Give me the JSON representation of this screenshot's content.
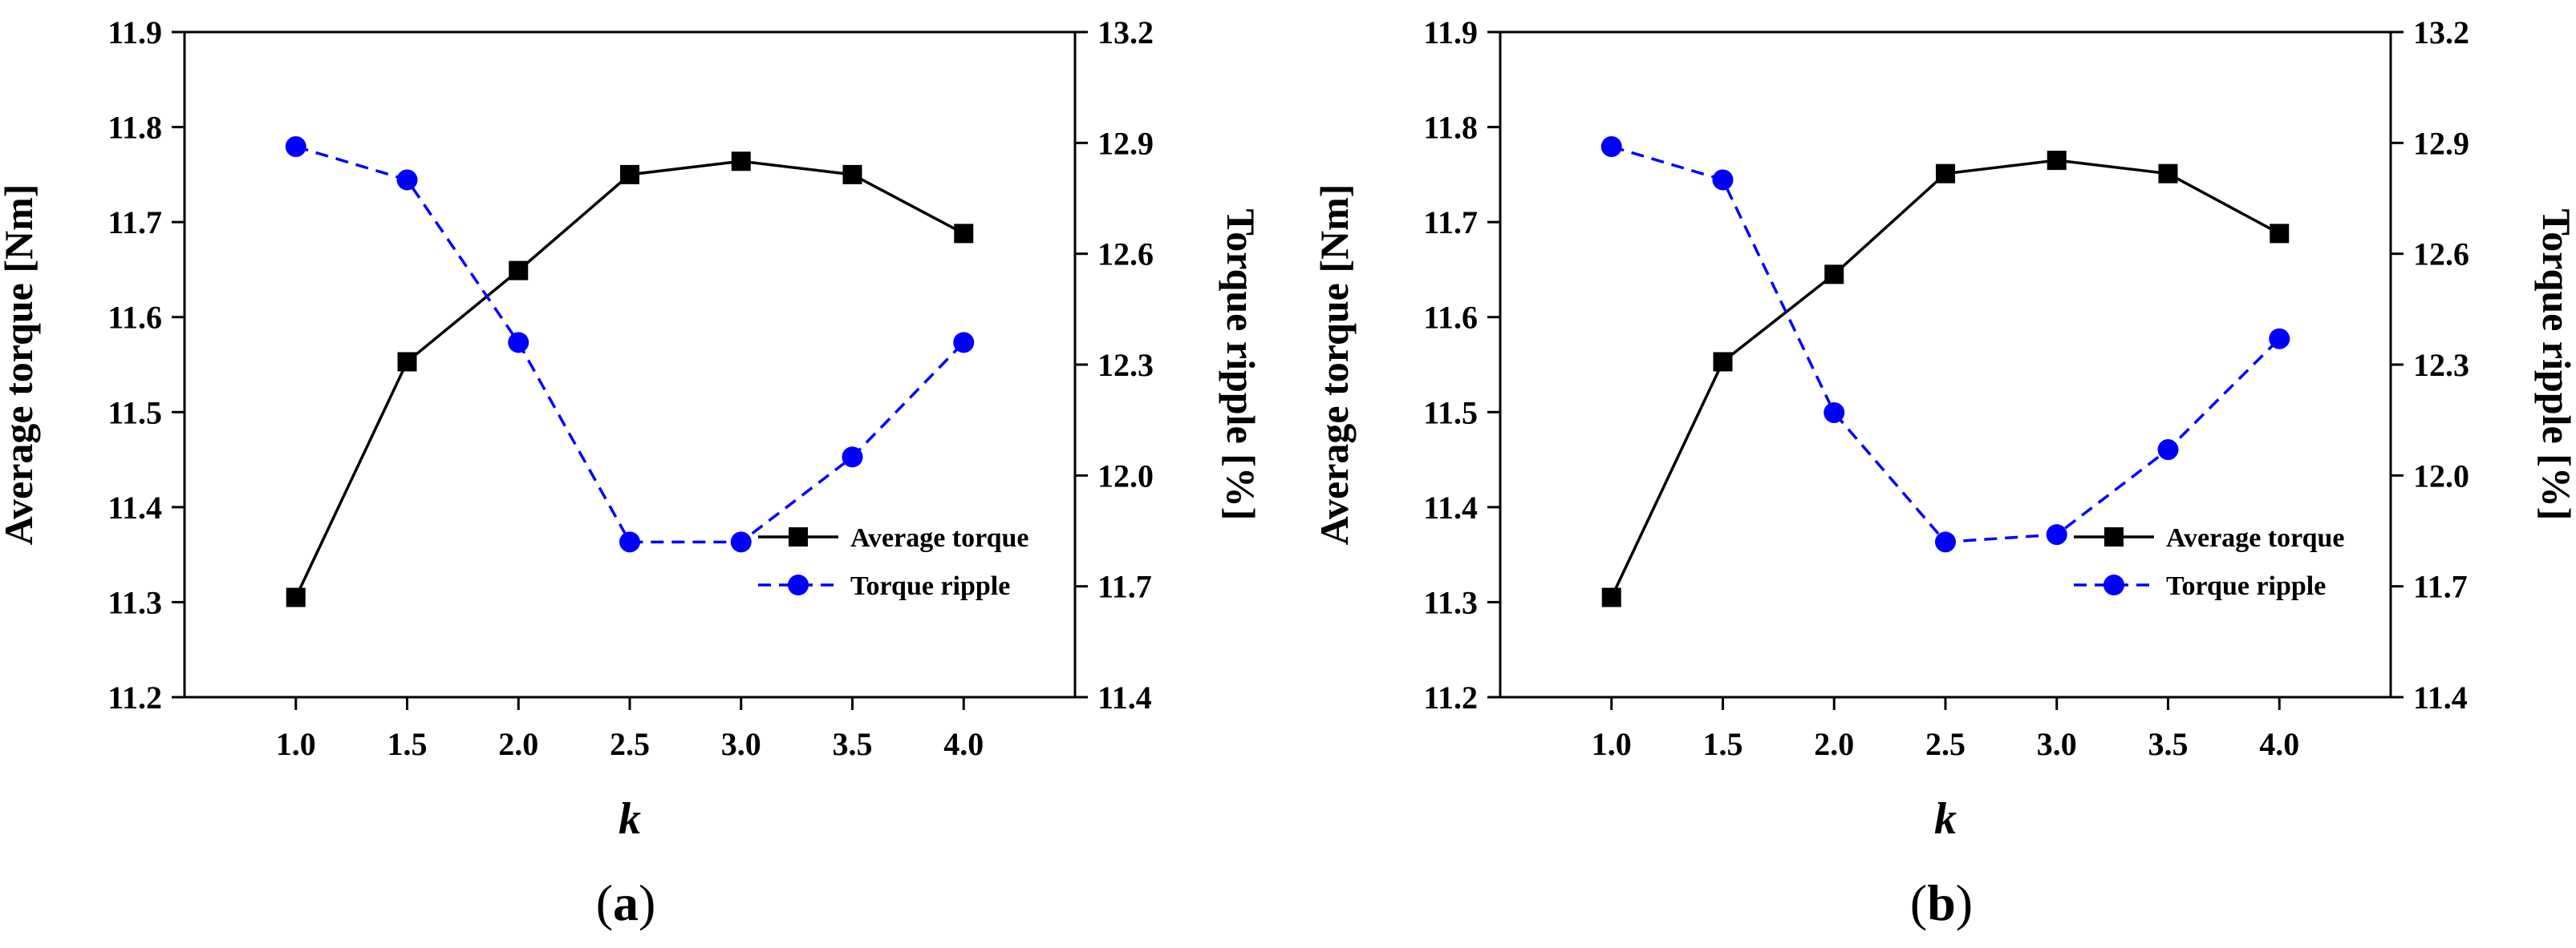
{
  "chart_data": [
    {
      "type": "line",
      "panel_label": "a",
      "x": [
        1.0,
        1.5,
        2.0,
        2.5,
        3.0,
        3.5,
        4.0
      ],
      "xticks": [
        "1.0",
        "1.5",
        "2.0",
        "2.5",
        "3.0",
        "3.5",
        "4.0"
      ],
      "xlim": [
        0.5,
        4.5
      ],
      "xlabel": "k",
      "ylabel_left": "Average torque [Nm]",
      "ylabel_right": "Torque ripple [%]",
      "ylim_left": [
        11.2,
        11.9
      ],
      "ylim_right": [
        11.4,
        13.2
      ],
      "yticks_left": [
        "11.2",
        "11.3",
        "11.4",
        "11.5",
        "11.6",
        "11.7",
        "11.8",
        "11.9"
      ],
      "yticks_right": [
        "11.4",
        "11.7",
        "12.0",
        "12.3",
        "12.6",
        "12.9",
        "13.2"
      ],
      "series": [
        {
          "name": "Average torque",
          "axis": "left",
          "color": "#000000",
          "marker": "square",
          "dash": "solid",
          "values": [
            11.305,
            11.553,
            11.649,
            11.75,
            11.764,
            11.75,
            11.688
          ]
        },
        {
          "name": "Torque ripple",
          "axis": "right",
          "color": "#0000ff",
          "marker": "circle",
          "dash": "dashed",
          "values": [
            12.89,
            12.8,
            12.36,
            11.82,
            11.82,
            12.05,
            12.36
          ]
        }
      ],
      "legend": [
        "Average torque",
        "Torque ripple"
      ]
    },
    {
      "type": "line",
      "panel_label": "b",
      "x": [
        1.0,
        1.5,
        2.0,
        2.5,
        3.0,
        3.5,
        4.0
      ],
      "xticks": [
        "1.0",
        "1.5",
        "2.0",
        "2.5",
        "3.0",
        "3.5",
        "4.0"
      ],
      "xlim": [
        0.5,
        4.5
      ],
      "xlabel": "k",
      "ylabel_left": "Average torque [Nm]",
      "ylabel_right": "Torque ripple [%]",
      "ylim_left": [
        11.2,
        11.9
      ],
      "ylim_right": [
        11.4,
        13.2
      ],
      "yticks_left": [
        "11.2",
        "11.3",
        "11.4",
        "11.5",
        "11.6",
        "11.7",
        "11.8",
        "11.9"
      ],
      "yticks_right": [
        "11.4",
        "11.7",
        "12.0",
        "12.3",
        "12.6",
        "12.9",
        "13.2"
      ],
      "series": [
        {
          "name": "Average torque",
          "axis": "left",
          "color": "#000000",
          "marker": "square",
          "dash": "solid",
          "values": [
            11.305,
            11.553,
            11.645,
            11.751,
            11.765,
            11.751,
            11.688
          ]
        },
        {
          "name": "Torque ripple",
          "axis": "right",
          "color": "#0000ff",
          "marker": "circle",
          "dash": "dashed",
          "values": [
            12.89,
            12.8,
            12.17,
            11.82,
            11.84,
            12.07,
            12.37
          ]
        }
      ],
      "legend": [
        "Average torque",
        "Torque ripple"
      ]
    }
  ]
}
